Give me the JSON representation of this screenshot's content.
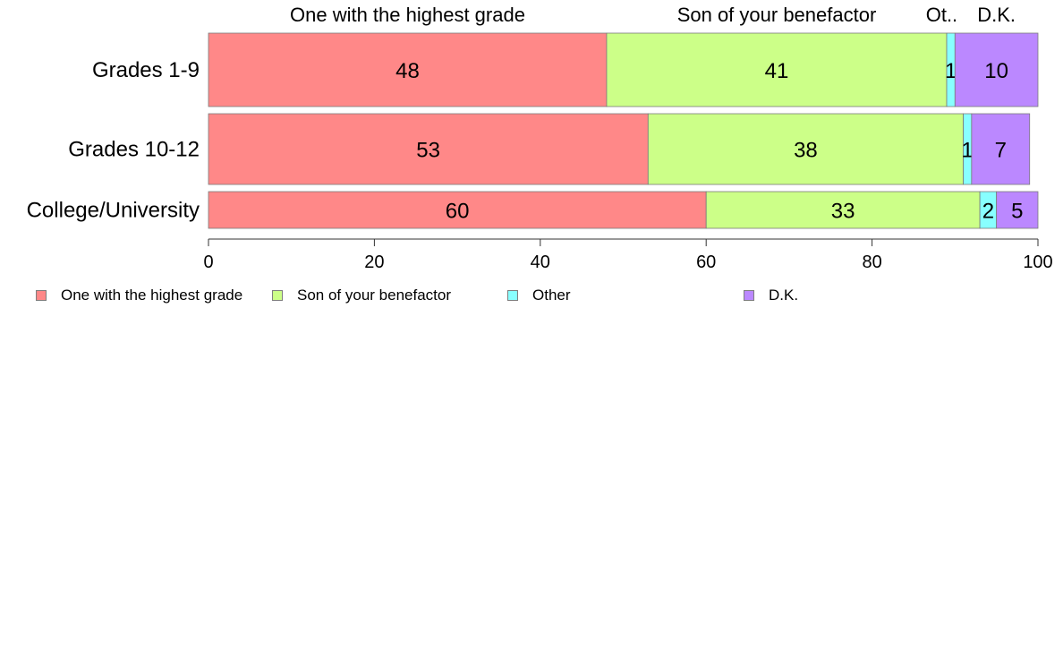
{
  "chart_data": {
    "type": "bar",
    "orientation": "horizontal",
    "stacked": true,
    "categories": [
      "Grades 1-9",
      "Grades 10-12",
      "College/University"
    ],
    "series": [
      {
        "name": "One with the highest grade",
        "color": "#ff8888",
        "values": [
          48,
          53,
          60
        ],
        "top_label": "One with the highest grade"
      },
      {
        "name": "Son of your benefactor",
        "color": "#ccff88",
        "values": [
          41,
          38,
          33
        ],
        "top_label": "Son of your benefactor"
      },
      {
        "name": "Other",
        "color": "#88ffff",
        "values": [
          1,
          1,
          2
        ],
        "top_label": "Ot.."
      },
      {
        "name": "D.K.",
        "color": "#bb88ff",
        "values": [
          10,
          7,
          5
        ],
        "top_label": "D.K."
      }
    ],
    "xlim": [
      0,
      100
    ],
    "xticks": [
      "0",
      "20",
      "40",
      "60",
      "80",
      "100"
    ],
    "grid": false,
    "legend_position": "bottom"
  }
}
